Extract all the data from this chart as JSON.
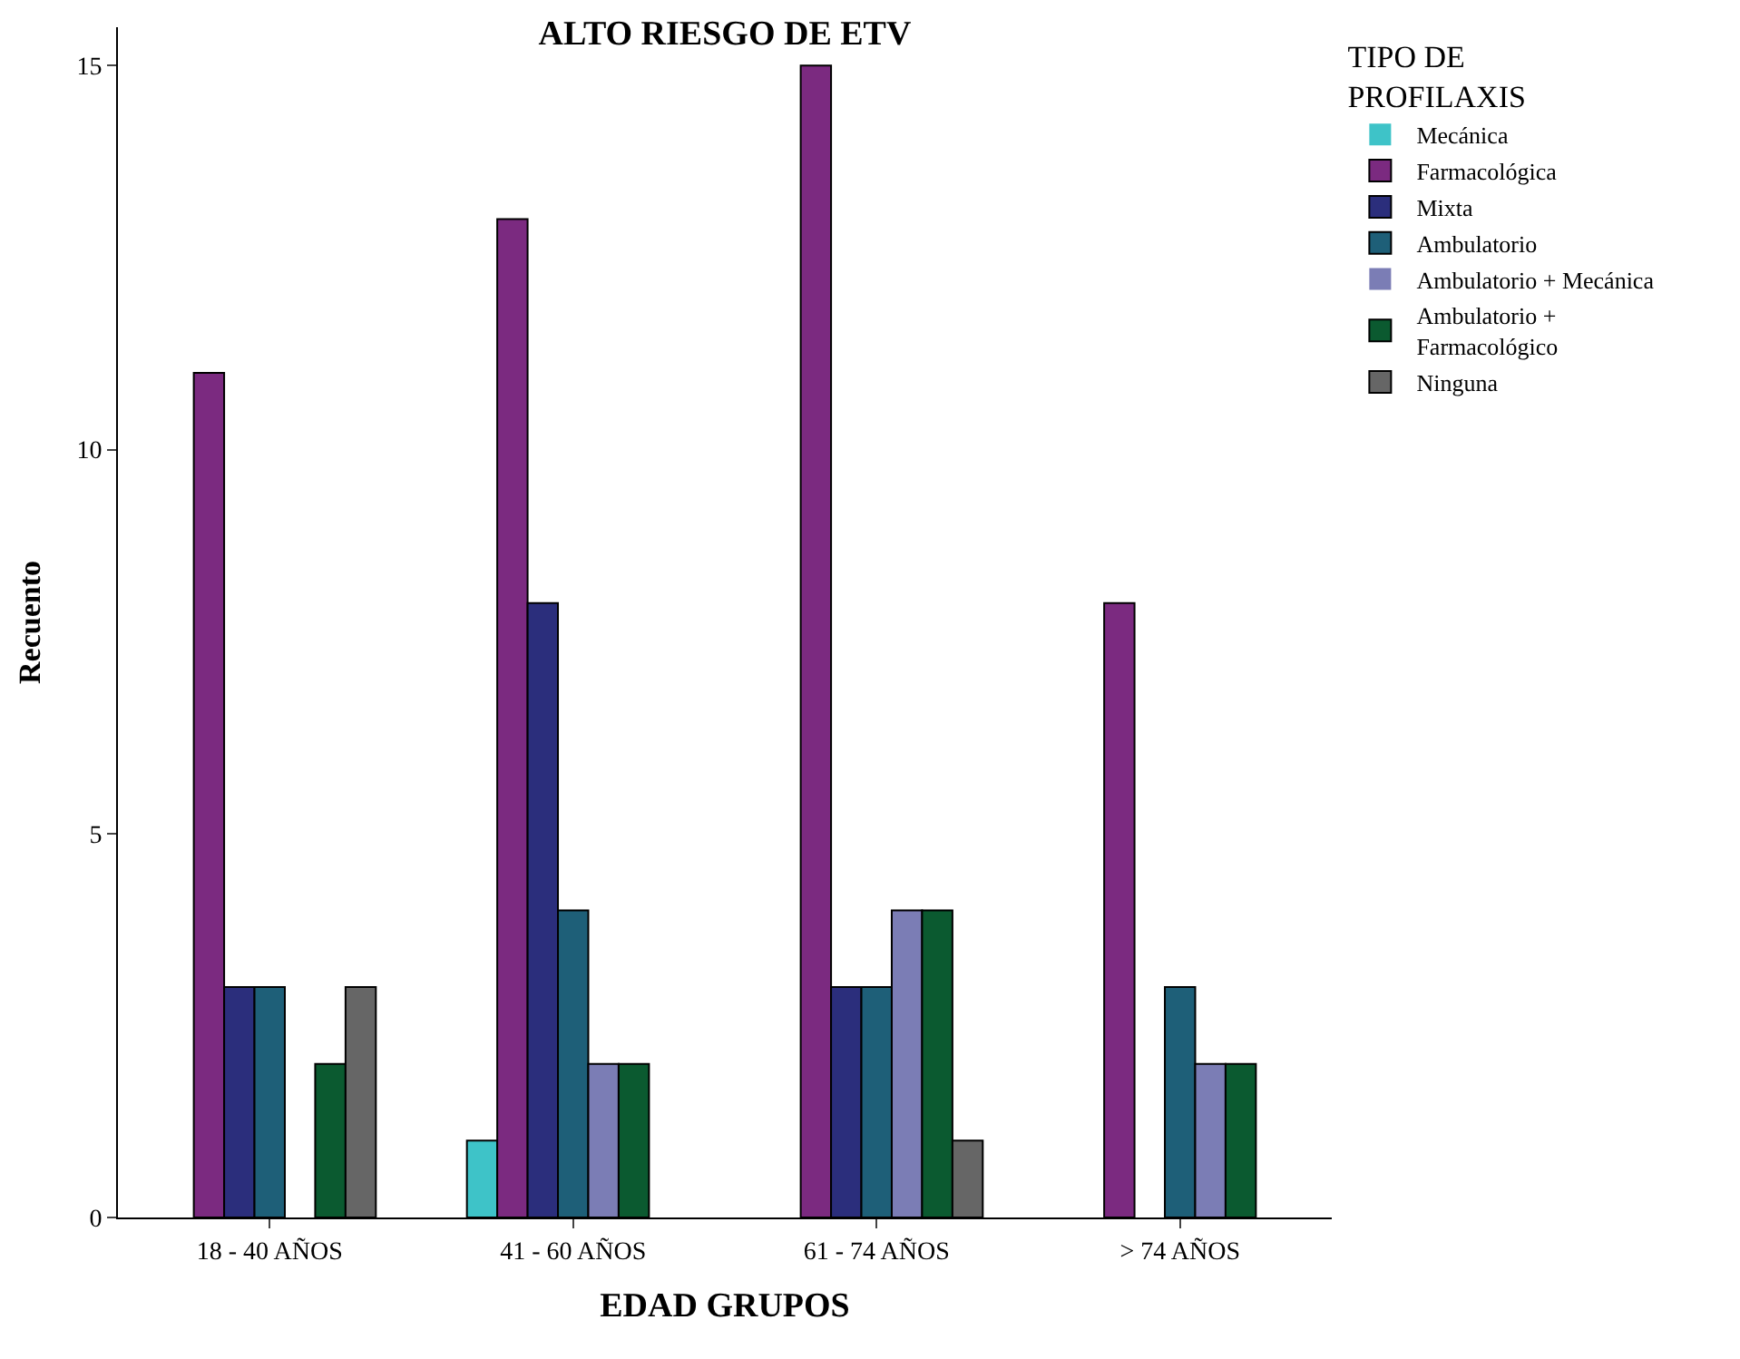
{
  "chart_data": {
    "type": "bar",
    "title": "ALTO RIESGO DE ETV",
    "xlabel": "EDAD GRUPOS",
    "ylabel": "Recuento",
    "legend_title": "TIPO DE\nPROFILAXIS",
    "legend": "top right",
    "categories": [
      "18 - 40 AÑOS",
      "41 - 60 AÑOS",
      "61 - 74 AÑOS",
      "> 74 AÑOS"
    ],
    "ylim": [
      0,
      15.5
    ],
    "yticks": [
      0,
      5,
      10,
      15
    ],
    "series": [
      {
        "name": "Mecánica",
        "color": "#3ec3c8",
        "values": [
          0,
          1,
          0,
          0
        ]
      },
      {
        "name": "Farmacológica",
        "color": "#7b2a80",
        "values": [
          11,
          13,
          15,
          8
        ]
      },
      {
        "name": "Mixta",
        "color": "#2b2e7c",
        "values": [
          3,
          8,
          3,
          0
        ]
      },
      {
        "name": "Ambulatorio",
        "color": "#1e5f78",
        "values": [
          3,
          4,
          3,
          3
        ]
      },
      {
        "name": "Ambulatorio + Mecánica",
        "color": "#7b7db5",
        "values": [
          0,
          2,
          4,
          2
        ]
      },
      {
        "name": "Ambulatorio +\nFarmacológico",
        "color": "#0b5a30",
        "values": [
          2,
          2,
          4,
          2
        ]
      },
      {
        "name": "Ninguna",
        "color": "#666666",
        "values": [
          3,
          0,
          1,
          0
        ]
      }
    ]
  }
}
